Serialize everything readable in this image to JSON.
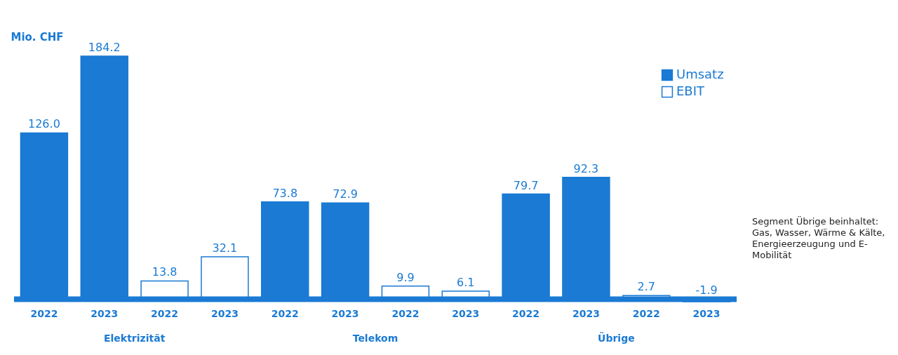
{
  "chart_data": {
    "type": "bar",
    "ylabel": "Mio. CHF",
    "categories": [
      "2022",
      "2023",
      "2022",
      "2023",
      "2022",
      "2023",
      "2022",
      "2023",
      "2022",
      "2023",
      "2022",
      "2023"
    ],
    "series": [
      {
        "name": "Umsatz",
        "color": "#1a7ad4",
        "values": [
          126.0,
          184.2,
          null,
          null,
          73.8,
          72.9,
          null,
          null,
          79.7,
          92.3,
          null,
          null
        ],
        "value_labels": [
          "126.0",
          "184.2",
          null,
          null,
          "73.8",
          "72.9",
          null,
          null,
          "79.7",
          "92.3",
          null,
          null
        ]
      },
      {
        "name": "EBIT",
        "color": "#1a7ad4",
        "values": [
          null,
          null,
          13.8,
          32.1,
          null,
          null,
          9.9,
          6.1,
          null,
          null,
          2.7,
          -1.9
        ],
        "value_labels": [
          null,
          null,
          "13.8",
          "32.1",
          null,
          null,
          "9.9",
          "6.1",
          null,
          null,
          "2.7",
          "-1.9"
        ]
      }
    ],
    "legend": "top right",
    "annotations": [
      "Elektrizität",
      "Telekom",
      "Übrige",
      "Segment Übrige beinhaltet: Gas, Wasser, Wärme & Kälte, Energieerzeugung und E-Mobilität"
    ]
  }
}
